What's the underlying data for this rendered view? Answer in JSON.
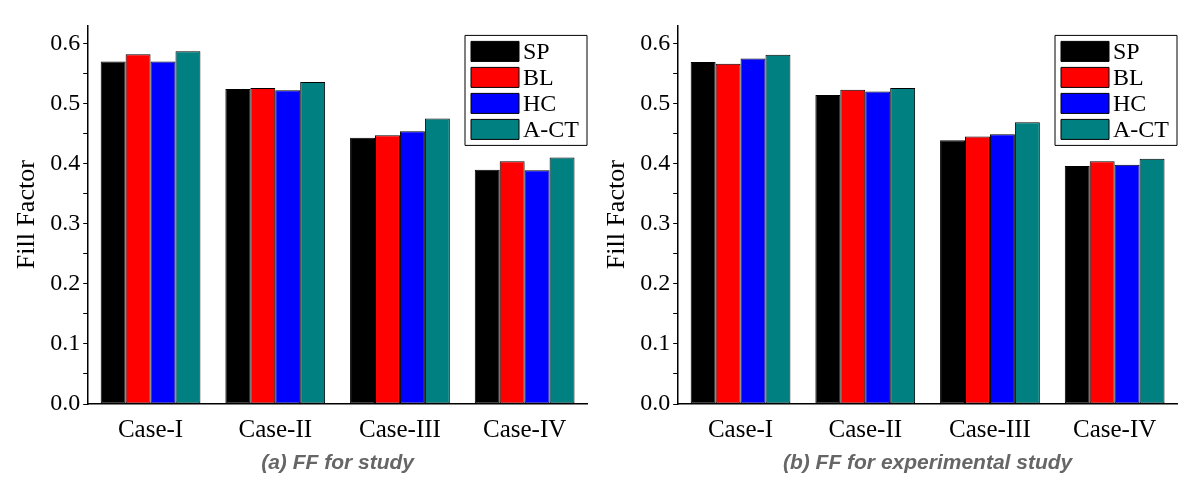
{
  "chart_data": [
    {
      "type": "bar",
      "categories": [
        "Case-I",
        "Case-II",
        "Case-III",
        "Case-IV"
      ],
      "ylabel": "Fill Factor",
      "ylim": [
        0,
        0.63
      ],
      "yticks": [
        {
          "value": 0,
          "label": "0.0"
        },
        {
          "value": 0.05,
          "label": null
        },
        0.1,
        {
          "value": 0.15,
          "label": null
        },
        0.2,
        {
          "value": 0.25,
          "label": null
        },
        0.3,
        {
          "value": 0.35,
          "label": null
        },
        0.4,
        {
          "value": 0.45,
          "label": null
        },
        0.5,
        {
          "value": 0.55,
          "label": null
        },
        0.6
      ],
      "legend": "top right",
      "grid": false,
      "annotations": [
        "(a) FF for study"
      ],
      "series": [
        {
          "name": "SP",
          "color": "#000000",
          "values": [
            0.57,
            0.524,
            0.443,
            0.39
          ]
        },
        {
          "name": "BL",
          "color": "#ff0000",
          "values": [
            0.582,
            0.526,
            0.447,
            0.404
          ]
        },
        {
          "name": "HC",
          "color": "#0000ff",
          "values": [
            0.57,
            0.522,
            0.454,
            0.389
          ]
        },
        {
          "name": "A-CT",
          "color": "#008080",
          "values": [
            0.587,
            0.536,
            0.475,
            0.41
          ]
        }
      ]
    },
    {
      "type": "bar",
      "categories": [
        "Case-I",
        "Case-II",
        "Case-III",
        "Case-IV"
      ],
      "ylabel": "Fill Factor",
      "ylim": [
        0,
        0.63
      ],
      "yticks": [
        {
          "value": 0,
          "label": "0.0"
        },
        {
          "value": 0.05,
          "label": null
        },
        0.1,
        {
          "value": 0.15,
          "label": null
        },
        0.2,
        {
          "value": 0.25,
          "label": null
        },
        0.3,
        {
          "value": 0.35,
          "label": null
        },
        0.4,
        {
          "value": 0.45,
          "label": null
        },
        0.5,
        {
          "value": 0.55,
          "label": null
        },
        0.6
      ],
      "legend": "top right",
      "grid": false,
      "annotations": [
        "(b) FF for experimental study"
      ],
      "series": [
        {
          "name": "SP",
          "color": "#000000",
          "values": [
            0.569,
            0.514,
            0.439,
            0.396
          ]
        },
        {
          "name": "BL",
          "color": "#ff0000",
          "values": [
            0.566,
            0.523,
            0.445,
            0.404
          ]
        },
        {
          "name": "HC",
          "color": "#0000ff",
          "values": [
            0.575,
            0.52,
            0.449,
            0.398
          ]
        },
        {
          "name": "A-CT",
          "color": "#008080",
          "values": [
            0.581,
            0.526,
            0.469,
            0.408
          ]
        }
      ]
    }
  ]
}
